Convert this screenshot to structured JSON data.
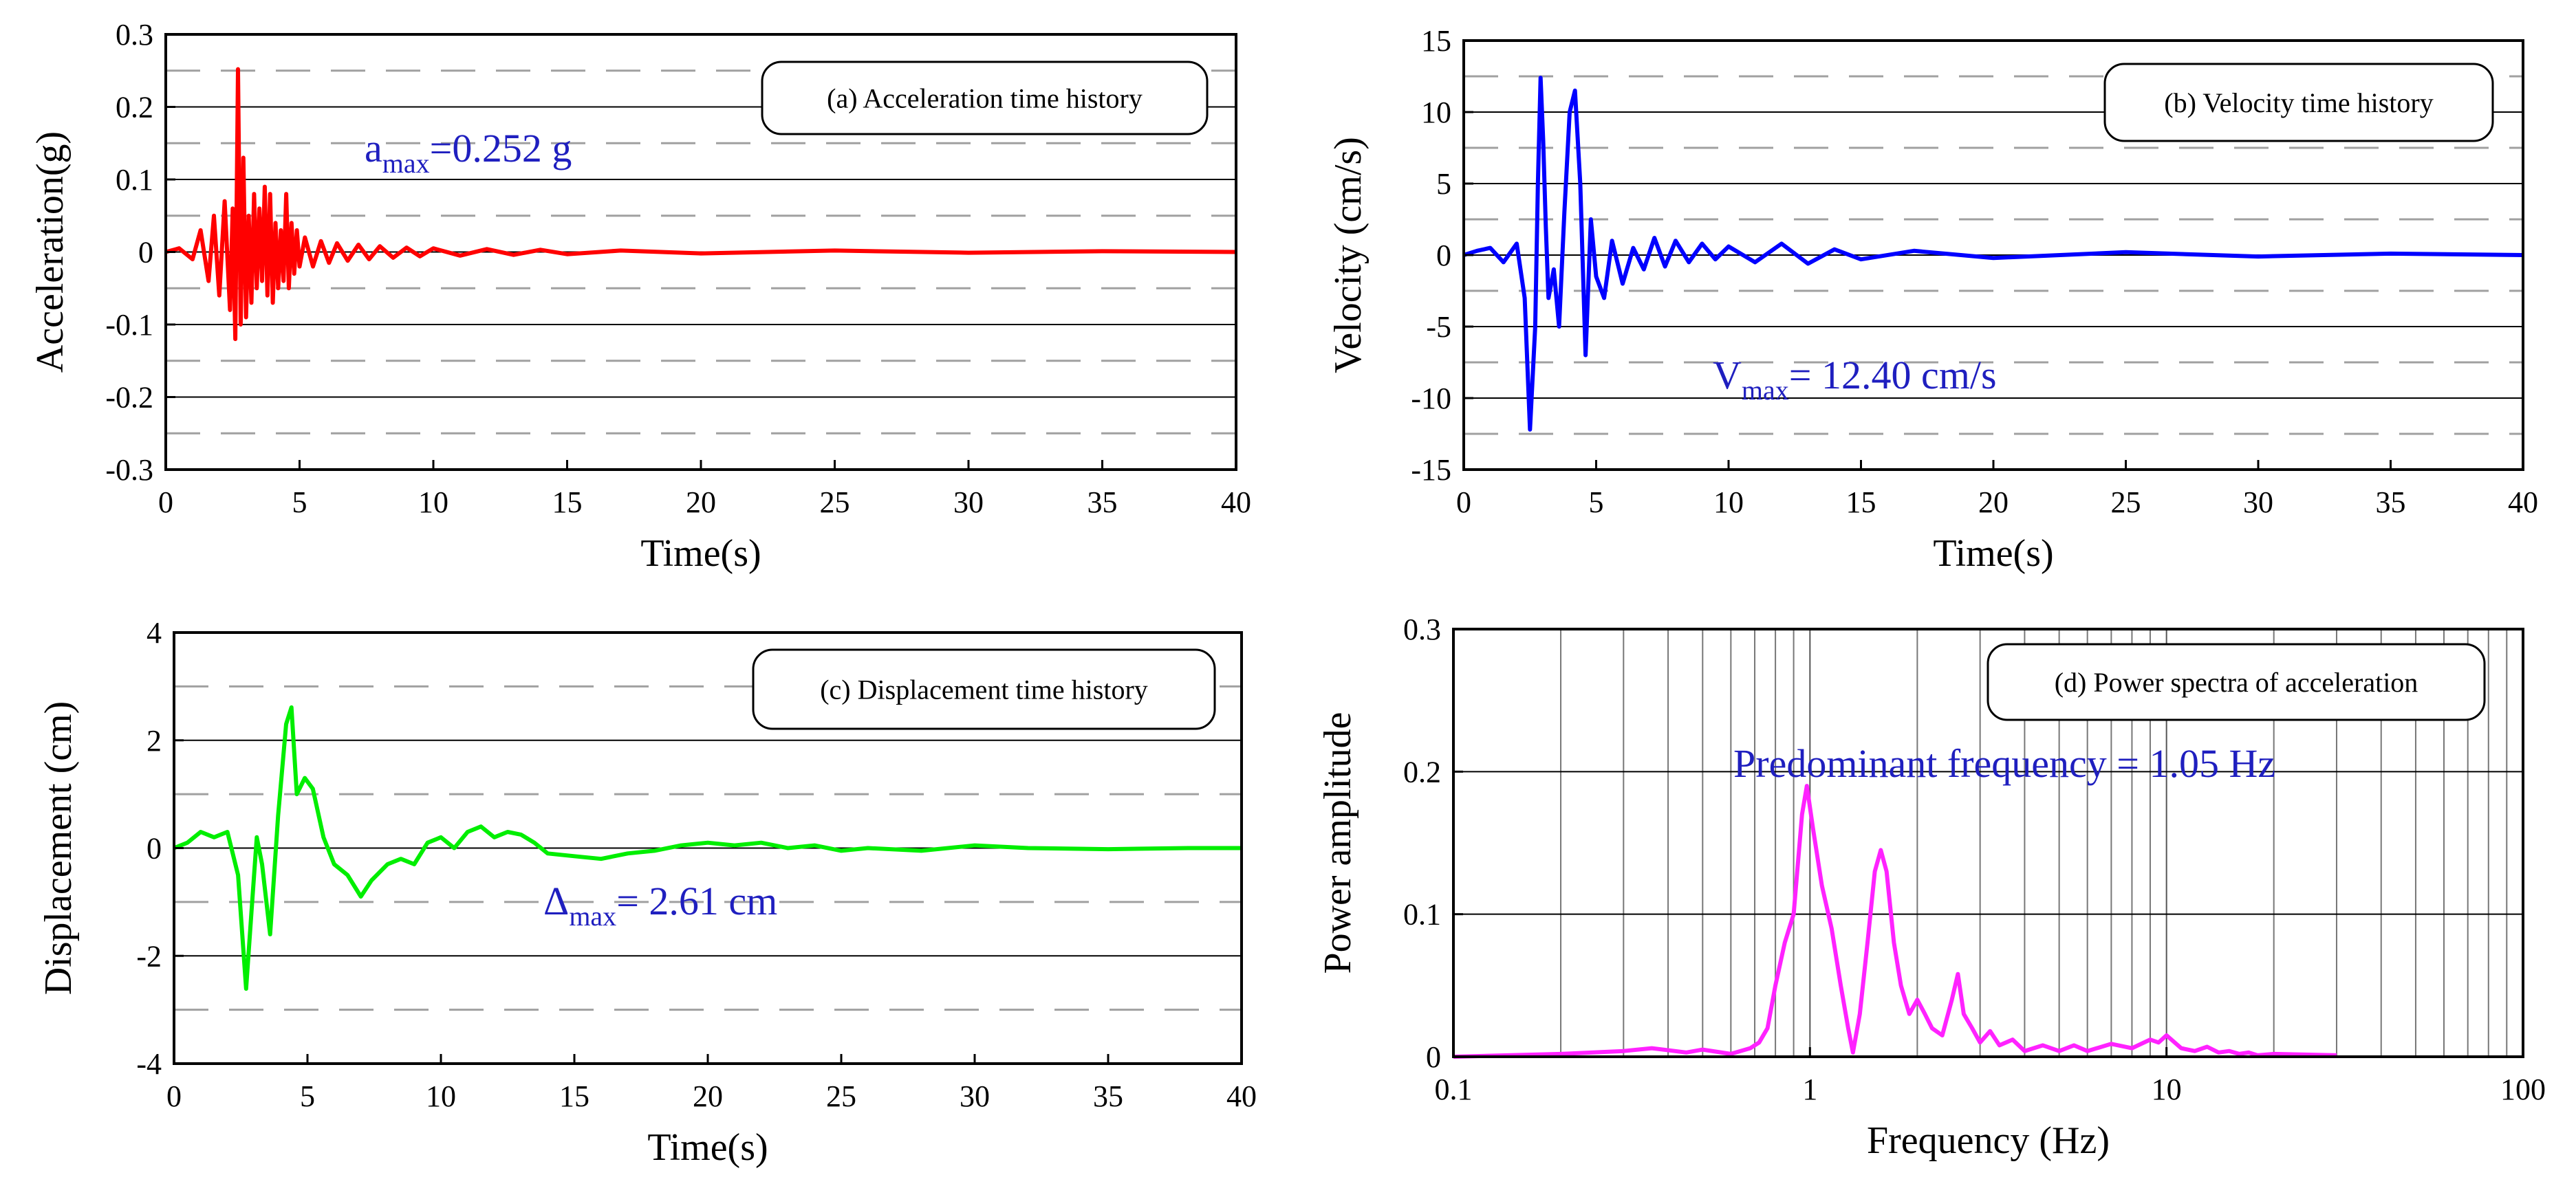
{
  "chart_data": [
    {
      "id": "a",
      "type": "line",
      "title": "(a) Acceleration time history",
      "xlabel": "Time(s)",
      "ylabel": "Acceleration(g)",
      "xlim": [
        0,
        40
      ],
      "ylim": [
        -0.3,
        0.3
      ],
      "xticks": [
        0,
        5,
        10,
        15,
        20,
        25,
        30,
        35,
        40
      ],
      "yticks": [
        0.3,
        0.2,
        0.1,
        0,
        -0.1,
        -0.2,
        -0.3
      ],
      "xtick_labels": [
        "0",
        "5",
        "10",
        "15",
        "20",
        "25",
        "30",
        "35",
        "40"
      ],
      "ytick_labels": [
        "0.3",
        "0.2",
        "0.1",
        "0",
        "-0.1",
        "-0.2",
        "-0.3"
      ],
      "grid_solid": [
        0.2,
        0.1,
        0,
        -0.1,
        -0.2
      ],
      "grid_dashed": [
        0.25,
        0.15,
        0.05,
        -0.05,
        -0.15,
        -0.25
      ],
      "series": [
        {
          "name": "Acceleration",
          "color": "#ff0000",
          "x": [
            0,
            0.5,
            1.0,
            1.3,
            1.6,
            1.8,
            2.0,
            2.2,
            2.4,
            2.5,
            2.6,
            2.7,
            2.8,
            2.9,
            3.0,
            3.1,
            3.2,
            3.3,
            3.4,
            3.5,
            3.6,
            3.7,
            3.8,
            3.9,
            4.0,
            4.1,
            4.2,
            4.3,
            4.4,
            4.5,
            4.6,
            4.7,
            4.8,
            4.9,
            5.0,
            5.2,
            5.5,
            5.8,
            6.1,
            6.4,
            6.8,
            7.2,
            7.6,
            8.0,
            8.5,
            9.0,
            9.5,
            10,
            11,
            12,
            13,
            14,
            15,
            17,
            20,
            25,
            30,
            35,
            40
          ],
          "y": [
            0,
            0.005,
            -0.01,
            0.03,
            -0.04,
            0.05,
            -0.06,
            0.07,
            -0.08,
            0.06,
            -0.12,
            0.252,
            -0.1,
            0.13,
            -0.09,
            0.05,
            -0.07,
            0.08,
            -0.05,
            0.06,
            -0.04,
            0.09,
            -0.06,
            0.08,
            -0.07,
            0.04,
            -0.05,
            0.03,
            -0.04,
            0.08,
            -0.05,
            0.04,
            -0.03,
            0.03,
            -0.02,
            0.02,
            -0.02,
            0.015,
            -0.015,
            0.012,
            -0.012,
            0.01,
            -0.01,
            0.008,
            -0.008,
            0.006,
            -0.006,
            0.005,
            -0.005,
            0.004,
            -0.004,
            0.003,
            -0.003,
            0.002,
            -0.002,
            0.002,
            -0.001,
            0.001,
            0
          ]
        }
      ],
      "annotation": {
        "main": "a",
        "sub": "max",
        "rest": "=0.252 g",
        "x": 7.6,
        "y": 0.265,
        "color": "#1f1fbf"
      }
    },
    {
      "id": "b",
      "type": "line",
      "title": "(b) Velocity time history",
      "xlabel": "Time(s)",
      "ylabel": "Velocity (cm/s)",
      "xlim": [
        0,
        40
      ],
      "ylim": [
        -15,
        15
      ],
      "xticks": [
        0,
        5,
        10,
        15,
        20,
        25,
        30,
        35,
        40
      ],
      "yticks": [
        15,
        10,
        5,
        0,
        -5,
        -10,
        -15
      ],
      "xtick_labels": [
        "0",
        "5",
        "10",
        "15",
        "20",
        "25",
        "30",
        "35",
        "40"
      ],
      "ytick_labels": [
        "15",
        "10",
        "5",
        "0",
        "-5",
        "-10",
        "-15"
      ],
      "grid_solid": [
        10,
        5,
        0,
        -5,
        -10
      ],
      "grid_dashed": [
        12.5,
        7.5,
        2.5,
        -2.5,
        -7.5,
        -12.5
      ],
      "series": [
        {
          "name": "Velocity",
          "color": "#0000ff",
          "x": [
            0,
            0.5,
            1.0,
            1.5,
            2.0,
            2.3,
            2.5,
            2.7,
            2.8,
            2.9,
            3.0,
            3.1,
            3.2,
            3.4,
            3.6,
            3.8,
            4.0,
            4.2,
            4.4,
            4.6,
            4.8,
            5.0,
            5.3,
            5.6,
            6.0,
            6.4,
            6.8,
            7.2,
            7.6,
            8.0,
            8.5,
            9.0,
            9.5,
            10,
            11,
            12,
            13,
            14,
            15,
            17,
            20,
            25,
            30,
            35,
            40
          ],
          "y": [
            0,
            0.3,
            0.5,
            -0.5,
            0.8,
            -3,
            -12.2,
            -5,
            5,
            12.4,
            8,
            2,
            -3,
            -1,
            -5,
            3,
            10,
            11.5,
            5,
            -7,
            2.5,
            -1.5,
            -3,
            1,
            -2,
            0.5,
            -1,
            1.2,
            -0.8,
            1,
            -0.5,
            0.8,
            -0.3,
            0.6,
            -0.5,
            0.8,
            -0.6,
            0.4,
            -0.3,
            0.3,
            -0.2,
            0.2,
            -0.1,
            0.1,
            0
          ]
        }
      ],
      "annotation": {
        "main": "V",
        "sub": "max",
        "rest": "= 12.40 cm/s",
        "x": 4.8,
        "y": -8.5,
        "color": "#1f1fbf"
      }
    },
    {
      "id": "c",
      "type": "line",
      "title": "(c) Displacement time history",
      "xlabel": "Time(s)",
      "ylabel": "Displacement (cm)",
      "xlim": [
        0,
        40
      ],
      "ylim": [
        -4,
        4
      ],
      "xticks": [
        0,
        5,
        10,
        15,
        20,
        25,
        30,
        35,
        40
      ],
      "yticks": [
        4,
        2,
        0,
        -2,
        -4
      ],
      "xtick_labels": [
        "0",
        "5",
        "10",
        "15",
        "20",
        "25",
        "30",
        "35",
        "40"
      ],
      "ytick_labels": [
        "4",
        "2",
        "0",
        "-2",
        "-4"
      ],
      "grid_solid": [
        2,
        0,
        -2
      ],
      "grid_dashed": [
        3,
        1,
        -1,
        -3
      ],
      "series": [
        {
          "name": "Displacement",
          "color": "#00ee00",
          "x": [
            0,
            0.5,
            1.0,
            1.5,
            2.0,
            2.4,
            2.7,
            2.9,
            3.1,
            3.3,
            3.6,
            3.9,
            4.2,
            4.4,
            4.6,
            4.9,
            5.2,
            5.6,
            6.0,
            6.5,
            7.0,
            7.4,
            8.0,
            8.5,
            9.0,
            9.5,
            10,
            10.5,
            11,
            11.5,
            12,
            12.5,
            13,
            13.5,
            14,
            15,
            16,
            17,
            18,
            19,
            20,
            21,
            22,
            23,
            24,
            25,
            26,
            28,
            30,
            32,
            35,
            38,
            40
          ],
          "y": [
            0,
            0.1,
            0.3,
            0.2,
            0.3,
            -0.5,
            -2.61,
            -1.2,
            0.2,
            -0.3,
            -1.6,
            0.6,
            2.3,
            2.61,
            1.0,
            1.3,
            1.1,
            0.2,
            -0.3,
            -0.5,
            -0.9,
            -0.6,
            -0.3,
            -0.2,
            -0.3,
            0.1,
            0.2,
            0.0,
            0.3,
            0.4,
            0.2,
            0.3,
            0.25,
            0.1,
            -0.1,
            -0.15,
            -0.2,
            -0.1,
            -0.05,
            0.05,
            0.1,
            0.05,
            0.1,
            0.0,
            0.05,
            -0.05,
            0.0,
            -0.05,
            0.05,
            0.0,
            -0.02,
            0.0,
            0.0
          ]
        }
      ],
      "annotation": {
        "main": "Δ",
        "sub": "max",
        "rest": "= 2.61 cm",
        "x": 14,
        "y": -1.2,
        "color": "#1f1fbf"
      }
    },
    {
      "id": "d",
      "type": "line",
      "x_scale": "log",
      "title": "(d) Power spectra of acceleration",
      "xlabel": "Frequency (Hz)",
      "ylabel": "Power amplitude",
      "xlim": [
        0.1,
        100
      ],
      "ylim": [
        0,
        0.3
      ],
      "xticks": [
        0.1,
        1,
        10,
        100
      ],
      "yticks": [
        0.3,
        0.2,
        0.1,
        0
      ],
      "xtick_labels": [
        "0.1",
        "1",
        "10",
        "100"
      ],
      "ytick_labels": [
        "0.3",
        "0.2",
        "0.1",
        "0"
      ],
      "grid_solid": [
        0.2,
        0.1
      ],
      "series": [
        {
          "name": "Power spectrum",
          "color": "#ff22ff",
          "x": [
            0.1,
            0.2,
            0.3,
            0.36,
            0.45,
            0.5,
            0.6,
            0.68,
            0.72,
            0.76,
            0.8,
            0.85,
            0.9,
            0.95,
            0.98,
            1.02,
            1.08,
            1.15,
            1.22,
            1.28,
            1.32,
            1.38,
            1.45,
            1.52,
            1.58,
            1.64,
            1.72,
            1.8,
            1.9,
            2.0,
            2.1,
            2.2,
            2.35,
            2.5,
            2.6,
            2.7,
            2.85,
            3.0,
            3.2,
            3.4,
            3.7,
            4.0,
            4.5,
            5.0,
            5.5,
            6,
            7,
            8,
            9,
            9.5,
            10,
            11,
            12,
            13,
            14,
            15,
            16,
            17,
            18,
            20,
            30
          ],
          "y": [
            0,
            0.002,
            0.004,
            0.006,
            0.003,
            0.005,
            0.002,
            0.006,
            0.01,
            0.02,
            0.05,
            0.08,
            0.1,
            0.17,
            0.19,
            0.16,
            0.12,
            0.09,
            0.05,
            0.02,
            0.003,
            0.03,
            0.08,
            0.13,
            0.145,
            0.13,
            0.08,
            0.05,
            0.03,
            0.04,
            0.03,
            0.02,
            0.015,
            0.04,
            0.058,
            0.03,
            0.02,
            0.01,
            0.018,
            0.008,
            0.012,
            0.004,
            0.008,
            0.004,
            0.008,
            0.004,
            0.009,
            0.006,
            0.012,
            0.01,
            0.015,
            0.006,
            0.004,
            0.007,
            0.003,
            0.004,
            0.002,
            0.003,
            0.001,
            0.002,
            0.001
          ]
        }
      ],
      "annotation": {
        "main": "Predominant frequency = 1.05 Hz",
        "sub": "",
        "rest": "",
        "x": 0.8,
        "y": 0.2,
        "color": "#1f1fbf"
      }
    }
  ]
}
